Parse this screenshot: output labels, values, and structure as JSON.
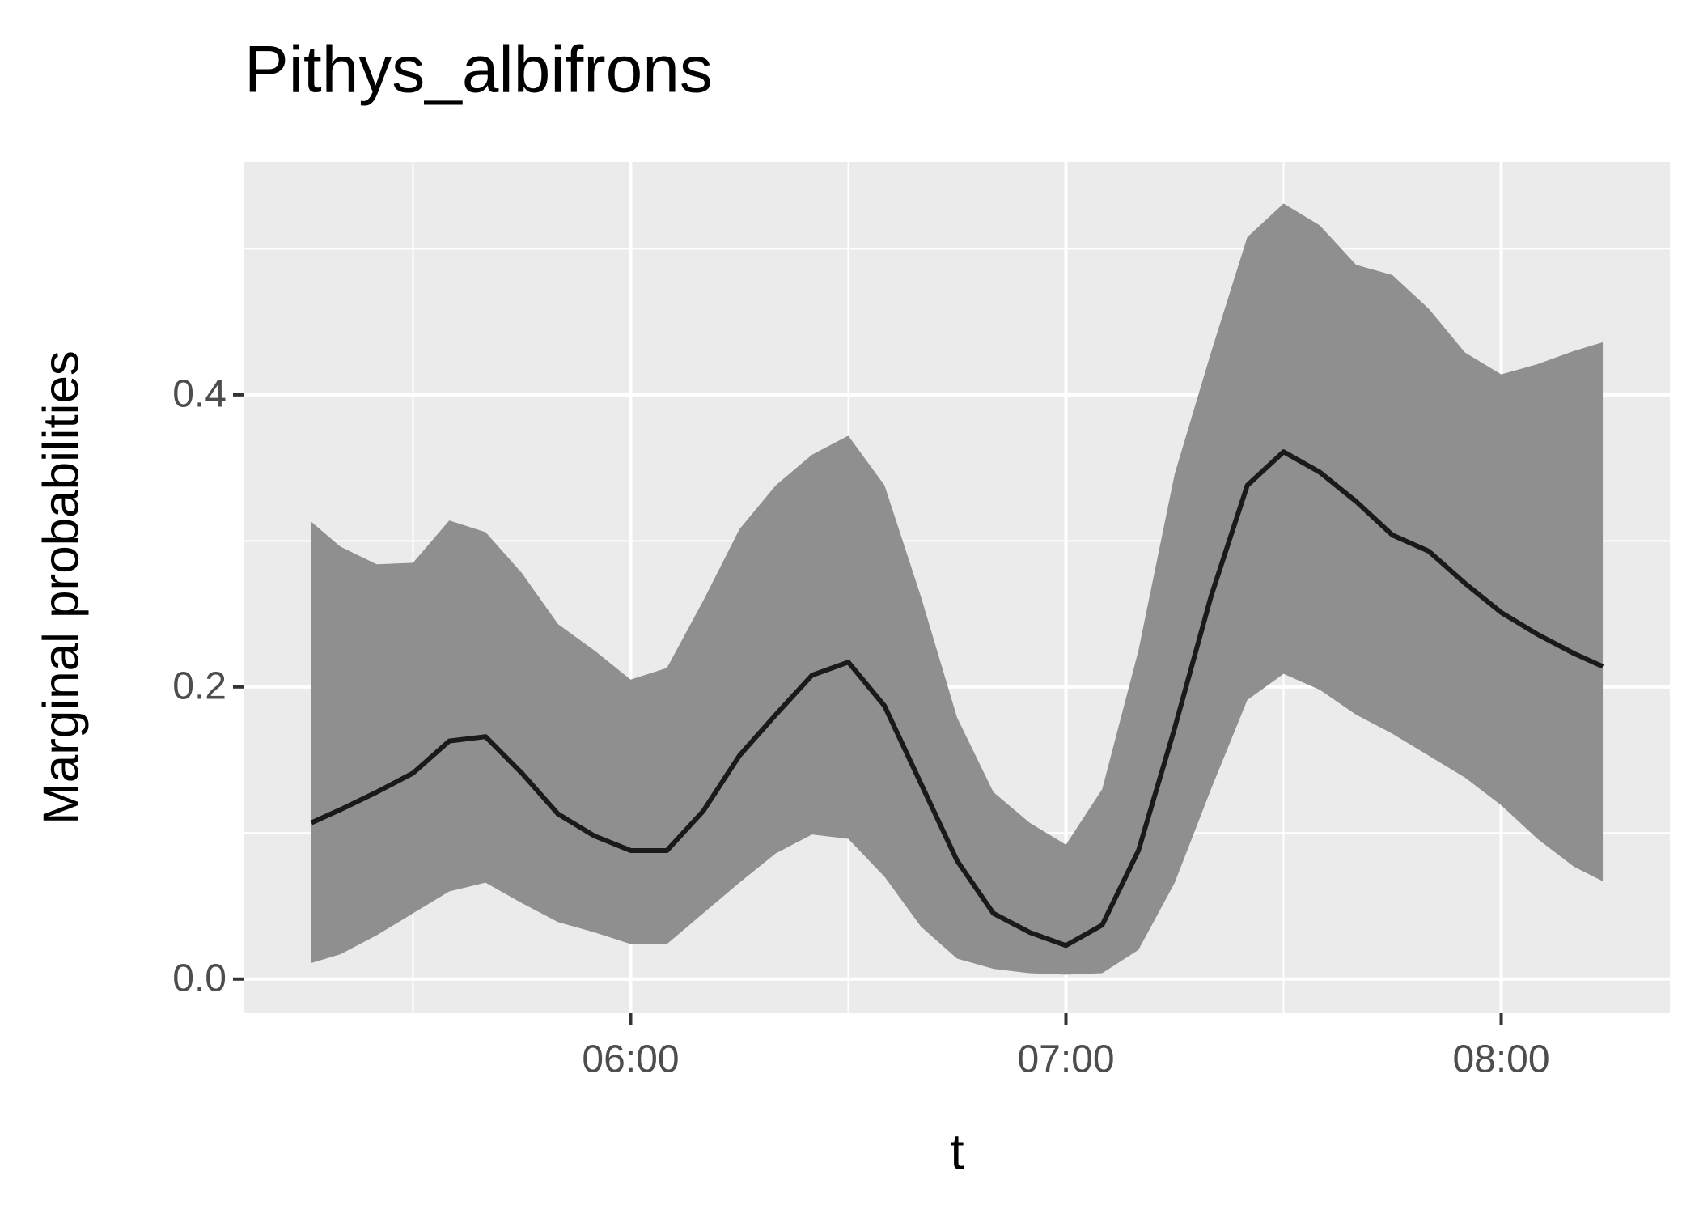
{
  "chart_data": {
    "type": "line",
    "title": "Pithys_albifrons",
    "x_label": "t",
    "y_label": "Marginal probabilities",
    "x": [
      316,
      320,
      325,
      330,
      335,
      340,
      345,
      350,
      355,
      360,
      365,
      370,
      375,
      380,
      385,
      390,
      395,
      400,
      405,
      410,
      415,
      420,
      425,
      430,
      435,
      440,
      445,
      450,
      455,
      460,
      465,
      470,
      475,
      480,
      485,
      490,
      494
    ],
    "series": [
      {
        "color": "#1a1a1a",
        "ribbon_color": "#8f8f8f",
        "values": [
          0.107,
          0.116,
          0.128,
          0.141,
          0.163,
          0.166,
          0.141,
          0.113,
          0.098,
          0.088,
          0.088,
          0.115,
          0.153,
          0.181,
          0.208,
          0.217,
          0.187,
          0.134,
          0.081,
          0.045,
          0.032,
          0.023,
          0.037,
          0.088,
          0.172,
          0.262,
          0.338,
          0.361,
          0.347,
          0.327,
          0.304,
          0.293,
          0.271,
          0.251,
          0.236,
          0.223,
          0.214
        ],
        "upper": [
          0.313,
          0.296,
          0.284,
          0.285,
          0.314,
          0.306,
          0.278,
          0.243,
          0.225,
          0.205,
          0.213,
          0.259,
          0.308,
          0.338,
          0.359,
          0.372,
          0.338,
          0.262,
          0.179,
          0.128,
          0.107,
          0.092,
          0.13,
          0.225,
          0.346,
          0.429,
          0.508,
          0.531,
          0.516,
          0.489,
          0.482,
          0.459,
          0.429,
          0.414,
          0.421,
          0.43,
          0.436
        ],
        "lower": [
          0.011,
          0.017,
          0.03,
          0.045,
          0.06,
          0.066,
          0.052,
          0.039,
          0.032,
          0.024,
          0.024,
          0.045,
          0.066,
          0.086,
          0.099,
          0.096,
          0.07,
          0.036,
          0.014,
          0.007,
          0.004,
          0.003,
          0.004,
          0.02,
          0.066,
          0.13,
          0.191,
          0.209,
          0.198,
          0.181,
          0.168,
          0.153,
          0.138,
          0.119,
          0.096,
          0.077,
          0.067
        ]
      }
    ],
    "xlim": [
      306.75,
      503.25
    ],
    "ylim": [
      -0.0234,
      0.5595
    ],
    "xticks": [
      {
        "value": 360,
        "label": "06:00"
      },
      {
        "value": 420,
        "label": "07:00"
      },
      {
        "value": 480,
        "label": "08:00"
      }
    ],
    "yticks": [
      {
        "value": 0,
        "label": "0.0"
      },
      0.2,
      0.4
    ],
    "minor_xticks": [
      330,
      390,
      450
    ],
    "minor_yticks": [
      0.1,
      0.3,
      0.5
    ],
    "grid": true
  }
}
